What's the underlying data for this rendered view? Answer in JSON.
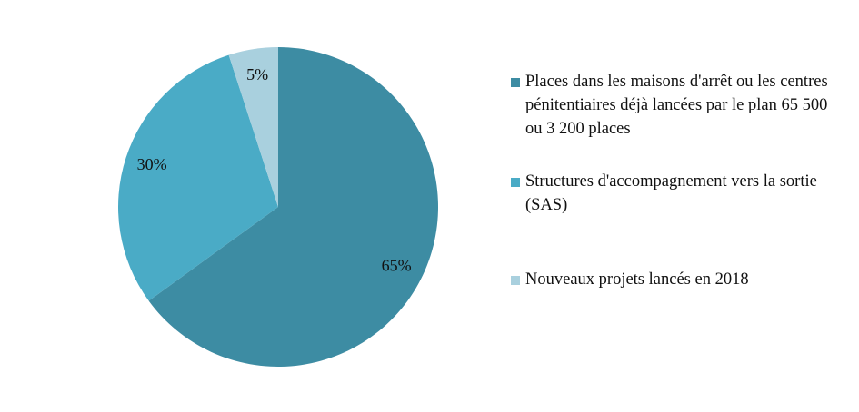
{
  "chart_data": {
    "type": "pie",
    "categories": [
      "Places dans les maisons d'arrêt ou les centres pénitentiaires déjà lancées par le plan 65 500 ou 3 200 places",
      "Structures d'accompagnement vers la sortie (SAS)",
      "Nouveaux projets lancés en 2018"
    ],
    "values": [
      65,
      30,
      5
    ],
    "value_labels": [
      "65%",
      "30%",
      "5%"
    ],
    "colors": [
      "#3d8ca3",
      "#4aabc6",
      "#a9d0de"
    ]
  }
}
